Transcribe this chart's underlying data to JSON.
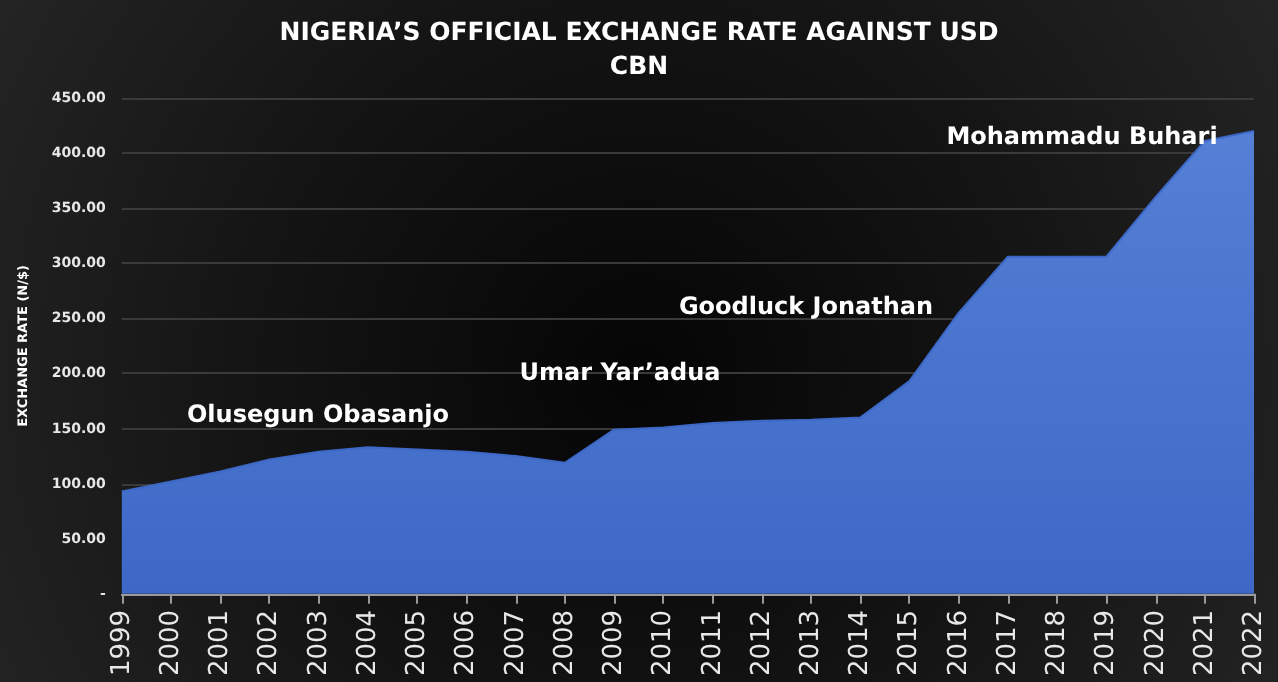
{
  "chart_data": {
    "type": "area",
    "title": "NIGERIA’S OFFICIAL EXCHANGE RATE AGAINST USD",
    "subtitle": "CBN",
    "ylabel": "EXCHANGE RATE (N/$)",
    "categories": [
      "1999",
      "2000",
      "2001",
      "2002",
      "2003",
      "2004",
      "2005",
      "2006",
      "2007",
      "2008",
      "2009",
      "2010",
      "2011",
      "2012",
      "2013",
      "2014",
      "2015",
      "2016",
      "2017",
      "2018",
      "2019",
      "2020",
      "2021",
      "2022"
    ],
    "series": [
      {
        "color": "#3d68c6",
        "values": [
          93,
          102,
          111,
          122,
          129,
          133,
          131,
          129,
          125,
          119,
          149,
          151,
          155,
          157,
          158,
          160,
          193,
          255,
          306,
          306,
          306,
          360,
          411,
          420
        ]
      }
    ],
    "ylim": [
      0,
      450
    ],
    "yticks": [
      {
        "value": 0,
        "label": "-"
      },
      {
        "value": 50,
        "label": "50.00"
      },
      {
        "value": 100,
        "label": "100.00"
      },
      {
        "value": 150,
        "label": "150.00"
      },
      {
        "value": 200,
        "label": "200.00"
      },
      {
        "value": 250,
        "label": "250.00"
      },
      {
        "value": 300,
        "label": "300.00"
      },
      {
        "value": 350,
        "label": "350.00"
      },
      {
        "value": 400,
        "label": "400.00"
      },
      {
        "value": 450,
        "label": "450.00"
      }
    ],
    "grid": "y",
    "annotations": [
      "Olusegun Obasanjo",
      "Umar Yar’adua",
      "Goodluck Jonathan",
      "Mohammadu Buhari"
    ]
  }
}
